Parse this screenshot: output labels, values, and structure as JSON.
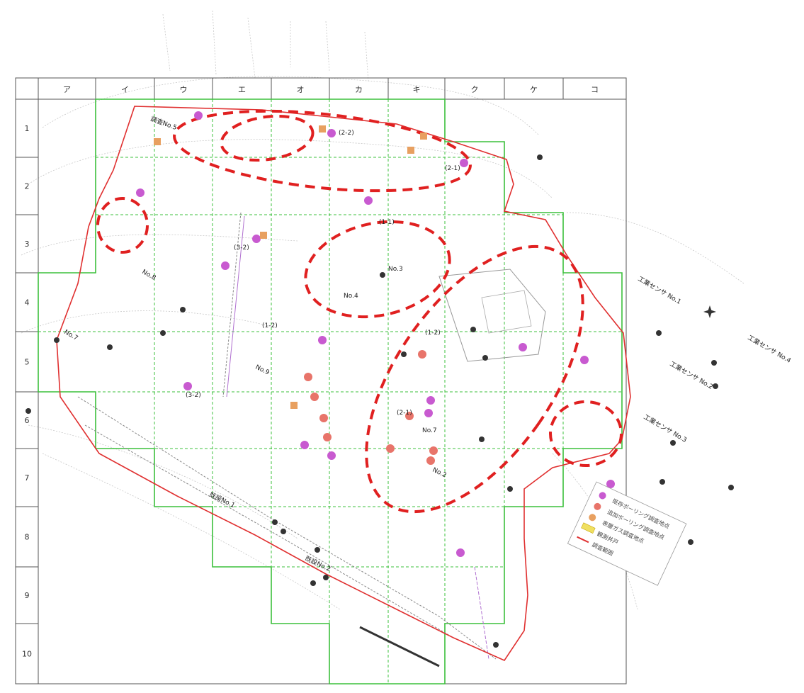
{
  "grid": {
    "columns": [
      "ア",
      "イ",
      "ウ",
      "エ",
      "オ",
      "カ",
      "キ",
      "ク",
      "ケ",
      "コ"
    ],
    "rows": [
      "1",
      "2",
      "3",
      "4",
      "5",
      "6",
      "7",
      "8",
      "9",
      "10"
    ]
  },
  "labels": [
    "調査No.5",
    "(2-2)",
    "(2-1)",
    "No.7",
    "No.8",
    "No.9",
    "No.2",
    "No.3",
    "No.4",
    "(1-2)",
    "(1-1)",
    "(3-2)",
    "工業センサ No.1",
    "工業センサ No.2",
    "工業センサ No.3",
    "工業センサ No.4",
    "既設No.1",
    "既設No.2"
  ],
  "legend": {
    "items": [
      {
        "label": "既存ボーリング調査地点",
        "color": "#c85ad0"
      },
      {
        "label": "追加ボーリング調査地点",
        "color": "#e8746a"
      },
      {
        "label": "表層ガス調査地点",
        "color": "#e8a060"
      },
      {
        "label": "観測井戸",
        "color": "#f0e060"
      },
      {
        "label": "調査範囲",
        "color": "#e03030"
      }
    ]
  },
  "colors": {
    "boundary": "#e03030",
    "grid_green": "#3cc03c",
    "dashed_red": "#e02020",
    "boring_purple": "#c85ad0",
    "boring_red": "#e8746a",
    "gas_orange": "#e8a060",
    "well_black": "#333333"
  }
}
